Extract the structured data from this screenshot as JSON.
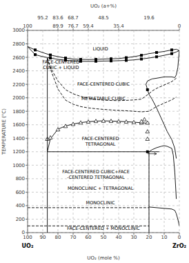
{
  "chart_data": {
    "type": "line",
    "x_label": "UO₂ (mole %)",
    "y_label": "TEMPERATURE (°C)",
    "x2_label": "UO₂ (a+%)",
    "xlim": [
      100,
      0
    ],
    "ylim": [
      0,
      3000
    ],
    "xticks": [
      100,
      90,
      80,
      70,
      60,
      50,
      40,
      30,
      20,
      10,
      0
    ],
    "yticks": [
      0,
      200,
      400,
      600,
      800,
      1000,
      1200,
      1400,
      1600,
      1800,
      2000,
      2200,
      2400,
      2600,
      2800,
      3000
    ],
    "x2ticks": [
      100,
      {
        "value": 80,
        "label": "89.9"
      },
      {
        "value": 70,
        "label": "76.7"
      },
      {
        "value": 60,
        "label": "59.4"
      },
      {
        "value": 40,
        "label": "35.4"
      },
      0
    ],
    "x2ticks_upper": [
      {
        "value": 90,
        "label": "95.2"
      },
      {
        "value": 80,
        "label": "83.6"
      },
      {
        "value": 70,
        "label": "68.7"
      },
      {
        "value": 50,
        "label": "48.5"
      },
      {
        "value": 20,
        "label": "19.6"
      }
    ],
    "x_end_labels": [
      "UO₂",
      "ZrO₂"
    ],
    "grid": true,
    "series": [
      {
        "type": "line",
        "line_style": "solid",
        "color": "black",
        "x": [
          100,
          95,
          90,
          85,
          80,
          75,
          70,
          65,
          60,
          55,
          50,
          45,
          40,
          35,
          30,
          25,
          20,
          15,
          10,
          5,
          2,
          0
        ],
        "values": [
          2760,
          2710,
          2670,
          2635,
          2610,
          2590,
          2575,
          2570,
          2568,
          2570,
          2575,
          2578,
          2582,
          2595,
          2610,
          2630,
          2655,
          2672,
          2688,
          2710,
          2720,
          2700
        ]
      },
      {
        "type": "line",
        "line_style": "solid",
        "color": "black",
        "x": [
          100,
          95,
          90,
          85,
          80,
          75,
          70,
          65,
          60,
          55,
          50,
          45,
          40,
          35,
          30,
          25,
          20,
          15,
          10,
          5,
          2,
          0
        ],
        "values": [
          2760,
          2640,
          2610,
          2590,
          2570,
          2558,
          2548,
          2542,
          2540,
          2542,
          2545,
          2547,
          2550,
          2555,
          2562,
          2575,
          2590,
          2608,
          2630,
          2655,
          2680,
          2700
        ]
      },
      {
        "type": "scatter",
        "marker": "square",
        "color": "black",
        "x": [
          95,
          85,
          75,
          65,
          55,
          45,
          35,
          25,
          15,
          5
        ],
        "values": [
          2710,
          2635,
          2590,
          2570,
          2570,
          2578,
          2595,
          2630,
          2672,
          2710
        ]
      },
      {
        "type": "scatter",
        "marker": "square",
        "color": "black",
        "x": [
          95,
          85,
          75,
          65,
          55,
          45,
          35,
          25,
          15,
          5
        ],
        "values": [
          2640,
          2590,
          2558,
          2542,
          2542,
          2547,
          2555,
          2575,
          2608,
          2655
        ]
      },
      {
        "type": "line",
        "line_style": "dashed",
        "color": "black",
        "x": [
          87,
          85,
          80,
          75,
          70,
          65,
          60,
          55,
          50,
          45,
          40,
          35,
          30,
          25,
          20,
          18,
          15,
          10,
          5,
          2
        ],
        "values": [
          2590,
          2450,
          2250,
          2120,
          2060,
          2020,
          1995,
          1975,
          1965,
          1960,
          1958,
          1962,
          1968,
          1980,
          2060,
          2100,
          2140,
          2190,
          2240,
          2290
        ]
      },
      {
        "type": "line",
        "line_style": "dashed",
        "color": "black",
        "x": [
          87,
          85,
          80,
          75,
          70,
          65,
          60,
          55,
          50,
          45,
          40,
          35,
          30,
          25,
          20,
          18,
          15,
          10,
          5,
          2
        ],
        "values": [
          2590,
          2430,
          2130,
          1965,
          1905,
          1870,
          1850,
          1838,
          1828,
          1820,
          1812,
          1808,
          1800,
          1792,
          1800,
          1830,
          1870,
          1920,
          1970,
          2010
        ]
      },
      {
        "type": "line",
        "line_style": "solid",
        "color": "black",
        "x": [
          87,
          85,
          80,
          75,
          70,
          65,
          60,
          55,
          50,
          45,
          40,
          35,
          30,
          25,
          22
        ],
        "values": [
          1200,
          1390,
          1535,
          1582,
          1610,
          1632,
          1645,
          1654,
          1658,
          1655,
          1650,
          1645,
          1638,
          1630,
          1625
        ]
      },
      {
        "type": "scatter",
        "marker": "open_triangle",
        "color": "black",
        "x": [
          87,
          85,
          80,
          75,
          70,
          65,
          60,
          55,
          50,
          45,
          40,
          35,
          30,
          25
        ],
        "values": [
          1390,
          1410,
          1530,
          1580,
          1610,
          1632,
          1645,
          1654,
          1658,
          1655,
          1650,
          1645,
          1638,
          1630
        ]
      },
      {
        "type": "scatter",
        "marker": "open_triangle",
        "color": "black",
        "x": [
          21,
          21,
          21
        ],
        "values": [
          1630,
          1500,
          1390
        ]
      },
      {
        "type": "scatter",
        "marker": "open_triangle",
        "color": "black",
        "x": [
          23,
          25
        ],
        "values": [
          1680,
          1650
        ]
      },
      {
        "type": "scatter",
        "marker": "square",
        "color": "black",
        "x": [
          21,
          21
        ],
        "values": [
          2120,
          1200
        ]
      },
      {
        "type": "line",
        "line_style": "solid",
        "color": "black",
        "x": [
          22,
          21,
          20,
          18,
          15,
          12,
          10,
          8,
          5,
          3,
          2
        ],
        "values": [
          2200,
          2120,
          2050,
          1980,
          1850,
          1700,
          1600,
          1500,
          1380,
          1250,
          1100
        ]
      },
      {
        "type": "line",
        "line_style": "solid",
        "color": "black",
        "x": [
          22,
          21,
          18,
          15,
          10,
          5,
          3,
          2,
          1,
          0
        ],
        "values": [
          2200,
          2250,
          2280,
          2290,
          2310,
          2310,
          2300,
          2340,
          2450,
          2700
        ]
      },
      {
        "type": "line",
        "line_style": "solid",
        "color": "black",
        "x": [
          20,
          18,
          15,
          12,
          10,
          8,
          5,
          4,
          3,
          2
        ],
        "values": [
          1200,
          1230,
          1260,
          1280,
          1290,
          1280,
          1250,
          1150,
          900,
          500
        ]
      },
      {
        "type": "line",
        "line_style": "solid",
        "color": "black",
        "x": [
          20,
          15,
          10,
          5,
          3,
          2,
          1,
          0
        ],
        "values": [
          380,
          370,
          360,
          350,
          330,
          280,
          200,
          100
        ]
      },
      {
        "type": "line",
        "line_style": "solid",
        "color": "black",
        "x": [
          87,
          87
        ],
        "values": [
          0,
          2590
        ]
      },
      {
        "type": "line",
        "line_style": "solid",
        "color": "black",
        "x": [
          20,
          20
        ],
        "values": [
          0,
          1200
        ]
      },
      {
        "type": "line",
        "line_style": "solid",
        "color": "black",
        "x": [
          87,
          13
        ],
        "values": [
          1200,
          1200
        ]
      },
      {
        "type": "line",
        "line_style": "dashed",
        "color": "black",
        "x": [
          100,
          20
        ],
        "values": [
          100,
          100
        ]
      },
      {
        "type": "line",
        "line_style": "dashed",
        "color": "black",
        "x": [
          100,
          20
        ],
        "values": [
          370,
          370
        ]
      }
    ],
    "arrows": [
      {
        "from": [
          21,
          1170
        ],
        "to": [
          15,
          1170
        ]
      }
    ],
    "annotations": [
      {
        "x": 52,
        "y": 2720,
        "text": "LIQUID"
      },
      {
        "x": 78,
        "y": 2490,
        "text": "FACE-CENTERED\nCUBIC + LIQUID"
      },
      {
        "x": 50,
        "y": 2200,
        "text": "FACE-CENTERED CUBIC"
      },
      {
        "x": 50,
        "y": 1990,
        "text": "METASTABLE CUBIC"
      },
      {
        "x": 52,
        "y": 1350,
        "text": "FACE-CENTERED\nTETRAGONAL"
      },
      {
        "x": 55,
        "y": 860,
        "text": "FACE-CENTERED CUBIC+FACE\n-CENTERED TETRAGONAL"
      },
      {
        "x": 52,
        "y": 660,
        "text": "MONOCLINIC + TETRAGONAL"
      },
      {
        "x": 52,
        "y": 440,
        "text": "MONOCLINIC"
      },
      {
        "x": 50,
        "y": 60,
        "text": "FACE-CENTERED + MONOCLINIC"
      }
    ]
  }
}
